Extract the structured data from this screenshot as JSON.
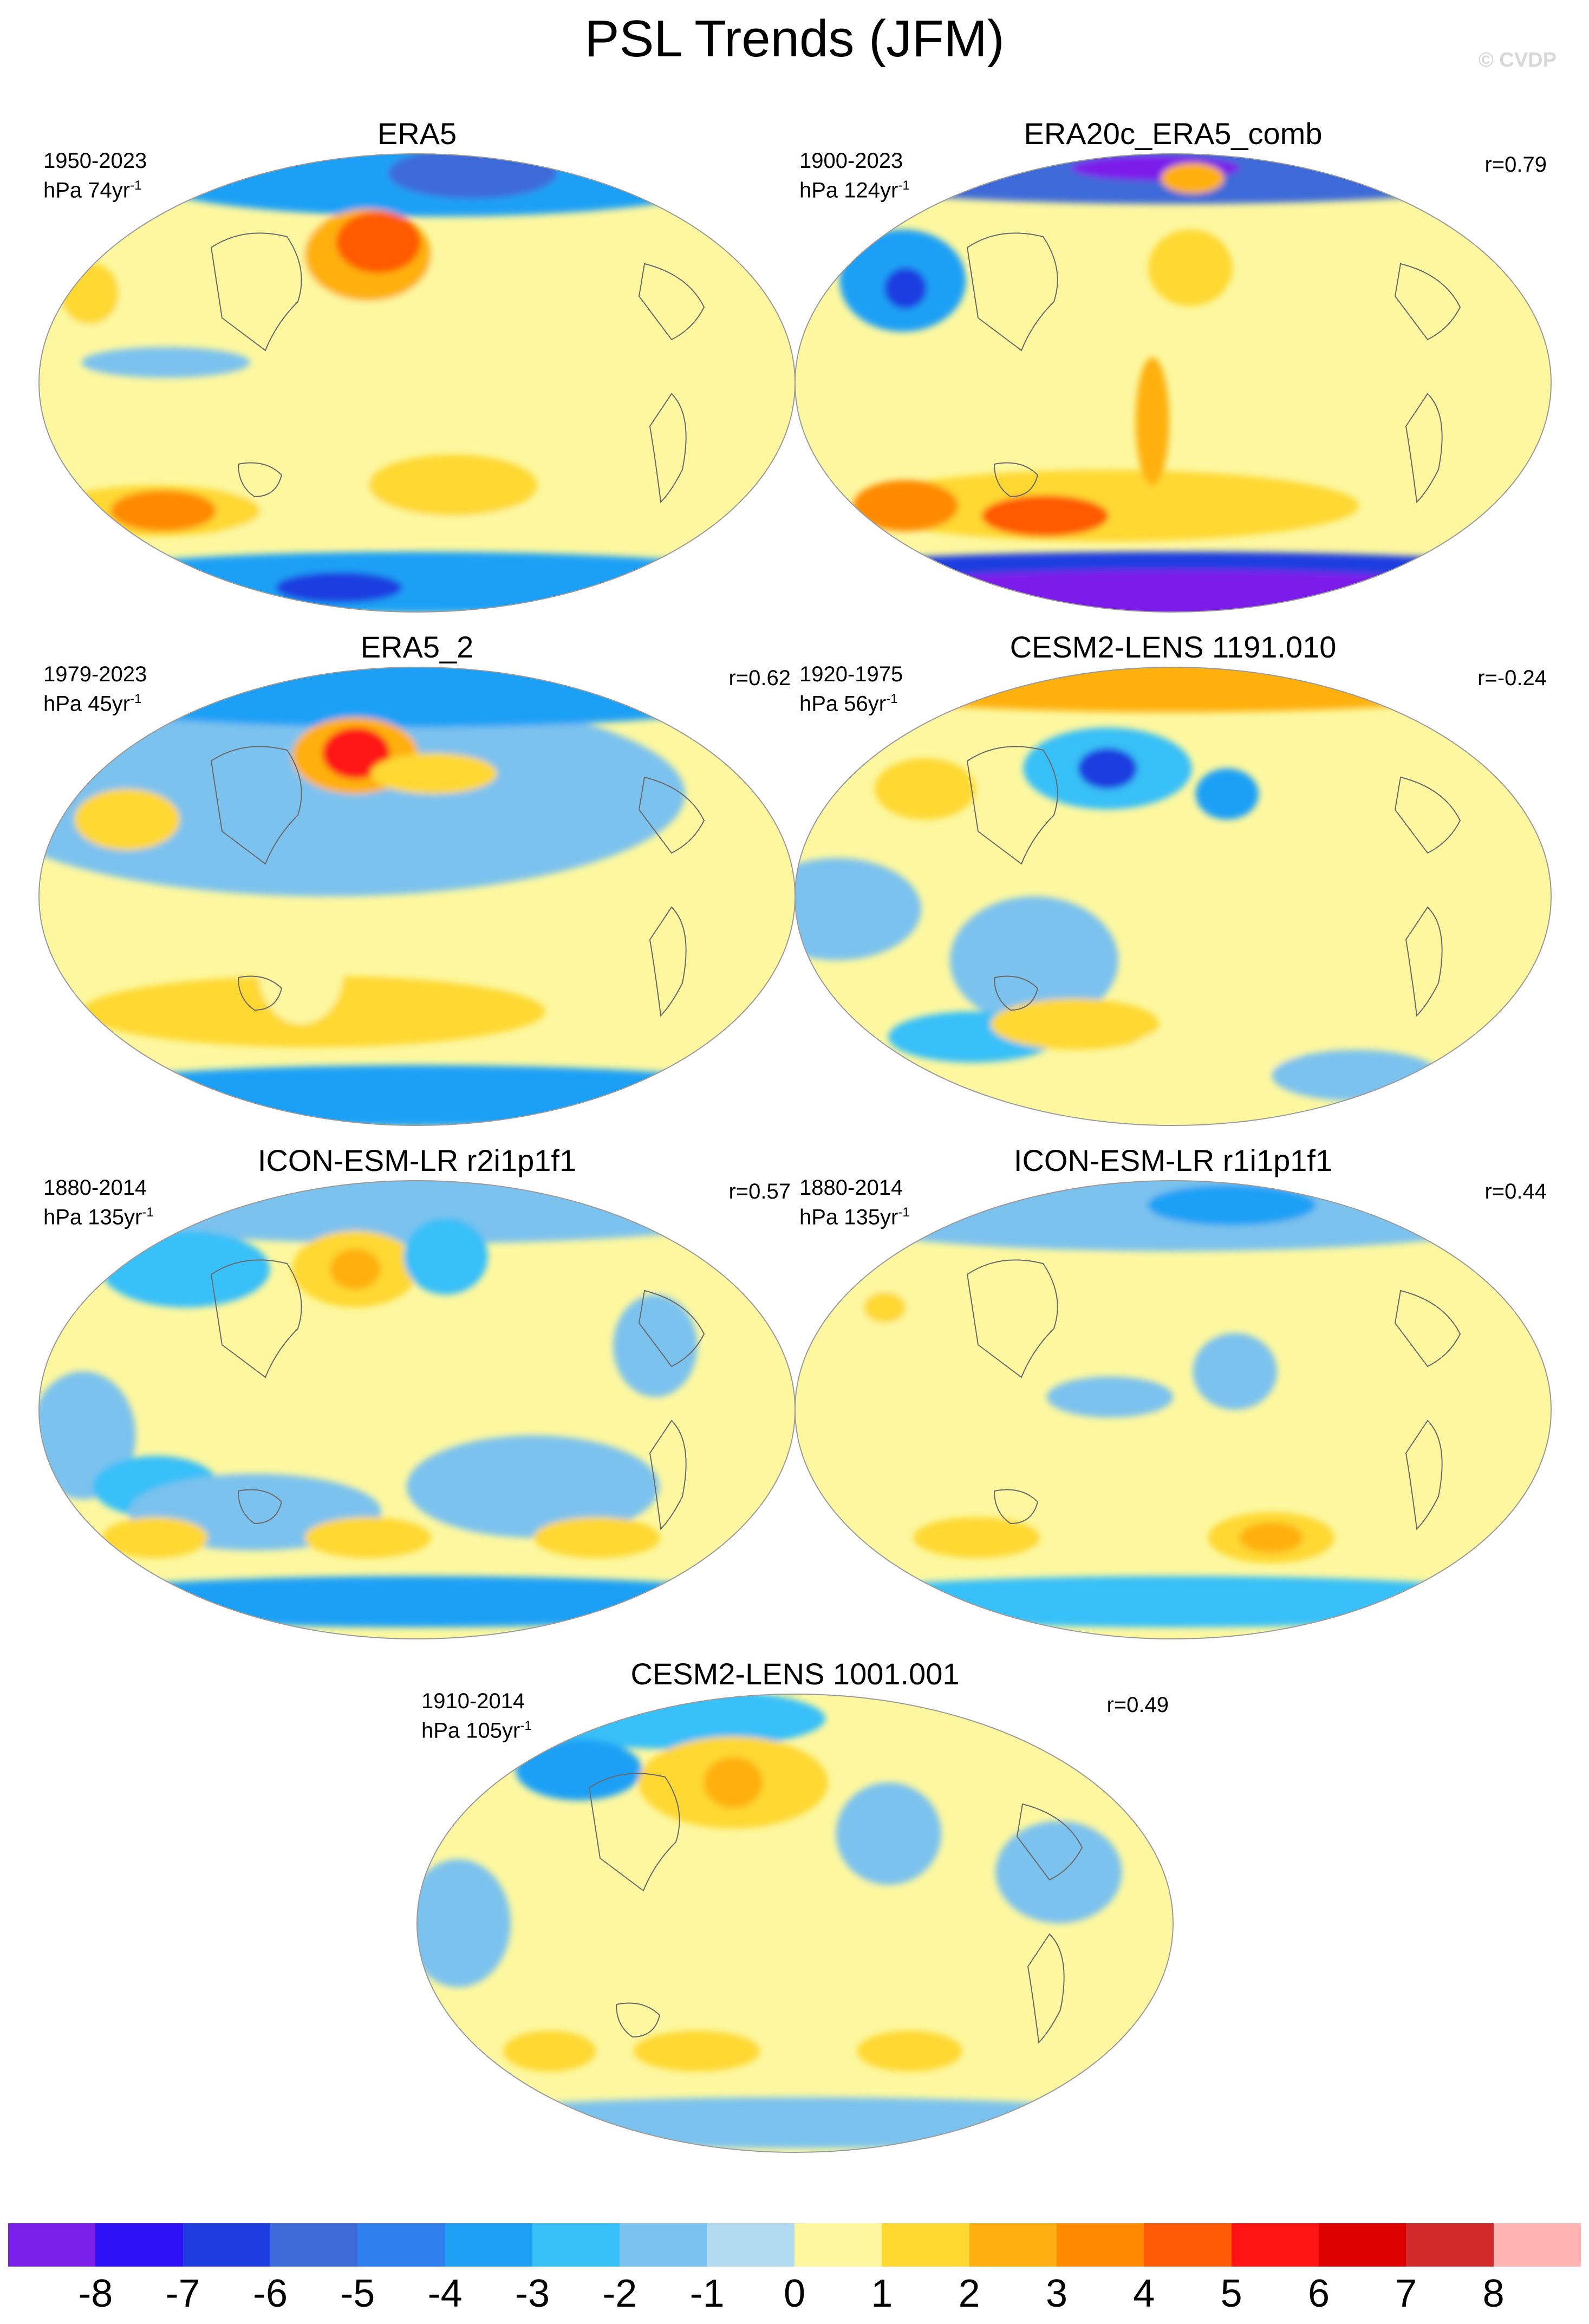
{
  "title": "PSL Trends (JFM)",
  "watermark": "© CVDP",
  "panels": [
    {
      "name": "ERA5",
      "period": "1950-2023",
      "units": "hPa 74yr",
      "units_exp": "-1",
      "corr": "",
      "blobs": [
        {
          "lon": 20,
          "lat": 80,
          "rx": 140,
          "ry": 15,
          "level": -3
        },
        {
          "lon": 60,
          "lat": 82,
          "rx": 40,
          "ry": 10,
          "level": -5
        },
        {
          "lon": -60,
          "lat": 45,
          "rx": 60,
          "ry": 18,
          "level": 1
        },
        {
          "lon": -160,
          "lat": 30,
          "rx": 28,
          "ry": 10,
          "level": 1
        },
        {
          "lon": -175,
          "lat": 35,
          "rx": 14,
          "ry": 12,
          "level": 2
        },
        {
          "lon": -30,
          "lat": 50,
          "rx": 30,
          "ry": 18,
          "level": 3
        },
        {
          "lon": -25,
          "lat": 55,
          "rx": 20,
          "ry": 12,
          "level": 5
        },
        {
          "lon": -40,
          "lat": -50,
          "rx": 80,
          "ry": 12,
          "level": 1
        },
        {
          "lon": -160,
          "lat": -50,
          "rx": 50,
          "ry": 10,
          "level": 2
        },
        {
          "lon": -155,
          "lat": -50,
          "rx": 25,
          "ry": 8,
          "level": 4
        },
        {
          "lon": 20,
          "lat": -40,
          "rx": 40,
          "ry": 12,
          "level": 2
        },
        {
          "lon": 0,
          "lat": -78,
          "rx": 180,
          "ry": 12,
          "level": -3
        },
        {
          "lon": -80,
          "lat": -80,
          "rx": 30,
          "ry": 6,
          "level": -6
        },
        {
          "lon": -120,
          "lat": 8,
          "rx": 40,
          "ry": 6,
          "level": -1
        }
      ]
    },
    {
      "name": "ERA20c_ERA5_comb",
      "period": "1900-2023",
      "units": "hPa 124yr",
      "units_exp": "-1",
      "corr": "r=0.79",
      "blobs": [
        {
          "lon": 0,
          "lat": 82,
          "rx": 180,
          "ry": 12,
          "level": -5
        },
        {
          "lon": -20,
          "lat": 84,
          "rx": 40,
          "ry": 5,
          "level": -8
        },
        {
          "lon": -150,
          "lat": 40,
          "rx": 30,
          "ry": 20,
          "level": -3
        },
        {
          "lon": -145,
          "lat": 37,
          "rx": 10,
          "ry": 8,
          "level": -6
        },
        {
          "lon": -80,
          "lat": 45,
          "rx": 30,
          "ry": 10,
          "level": 1
        },
        {
          "lon": 10,
          "lat": 45,
          "rx": 20,
          "ry": 15,
          "level": 2
        },
        {
          "lon": 20,
          "lat": 80,
          "rx": 15,
          "ry": 6,
          "level": 3
        },
        {
          "lon": -40,
          "lat": -48,
          "rx": 120,
          "ry": 14,
          "level": 2
        },
        {
          "lon": -160,
          "lat": -48,
          "rx": 25,
          "ry": 10,
          "level": 4
        },
        {
          "lon": -80,
          "lat": -52,
          "rx": 30,
          "ry": 8,
          "level": 5
        },
        {
          "lon": -10,
          "lat": -15,
          "rx": 8,
          "ry": 25,
          "level": 3
        },
        {
          "lon": 0,
          "lat": -74,
          "rx": 180,
          "ry": 8,
          "level": -6
        },
        {
          "lon": 0,
          "lat": -85,
          "rx": 180,
          "ry": 12,
          "level": -8
        }
      ]
    },
    {
      "name": "ERA5_2",
      "period": "1979-2023",
      "units": "hPa 45yr",
      "units_exp": "-1",
      "corr": "r=0.62",
      "blobs": [
        {
          "lon": -50,
          "lat": 40,
          "rx": 170,
          "ry": 40,
          "level": -1
        },
        {
          "lon": -10,
          "lat": 80,
          "rx": 180,
          "ry": 14,
          "level": -3
        },
        {
          "lon": -150,
          "lat": 30,
          "rx": 25,
          "ry": 12,
          "level": 2
        },
        {
          "lon": -40,
          "lat": 55,
          "rx": 30,
          "ry": 15,
          "level": 3
        },
        {
          "lon": -40,
          "lat": 56,
          "rx": 16,
          "ry": 10,
          "level": 6
        },
        {
          "lon": 10,
          "lat": 48,
          "rx": 30,
          "ry": 8,
          "level": 2
        },
        {
          "lon": -60,
          "lat": -45,
          "rx": 110,
          "ry": 14,
          "level": 2
        },
        {
          "lon": -60,
          "lat": -30,
          "rx": 20,
          "ry": 20,
          "level": 1
        },
        {
          "lon": 0,
          "lat": -78,
          "rx": 180,
          "ry": 12,
          "level": -3
        }
      ]
    },
    {
      "name": "CESM2-LENS 1191.010",
      "period": "1920-1975",
      "units": "hPa 56yr",
      "units_exp": "-1",
      "corr": "r=-0.24",
      "blobs": [
        {
          "lon": 0,
          "lat": 84,
          "rx": 180,
          "ry": 12,
          "level": 3
        },
        {
          "lon": -40,
          "lat": 50,
          "rx": 40,
          "ry": 16,
          "level": -2
        },
        {
          "lon": -40,
          "lat": 50,
          "rx": 14,
          "ry": 8,
          "level": -6
        },
        {
          "lon": -140,
          "lat": 42,
          "rx": 24,
          "ry": 12,
          "level": 2
        },
        {
          "lon": 30,
          "lat": 40,
          "rx": 15,
          "ry": 10,
          "level": -3
        },
        {
          "lon": -160,
          "lat": -5,
          "rx": 40,
          "ry": 20,
          "level": -1
        },
        {
          "lon": -70,
          "lat": -25,
          "rx": 40,
          "ry": 25,
          "level": -1
        },
        {
          "lon": -130,
          "lat": -55,
          "rx": 40,
          "ry": 10,
          "level": -2
        },
        {
          "lon": -60,
          "lat": -50,
          "rx": 40,
          "ry": 10,
          "level": 2
        },
        {
          "lon": 30,
          "lat": -60,
          "rx": 40,
          "ry": 10,
          "level": 1
        },
        {
          "lon": 150,
          "lat": -70,
          "rx": 40,
          "ry": 10,
          "level": -1
        }
      ]
    },
    {
      "name": "ICON-ESM-LR r2i1p1f1",
      "period": "1880-2014",
      "units": "hPa 135yr",
      "units_exp": "-1",
      "corr": "r=0.57",
      "blobs": [
        {
          "lon": 0,
          "lat": 80,
          "rx": 180,
          "ry": 15,
          "level": -1
        },
        {
          "lon": -150,
          "lat": 55,
          "rx": 40,
          "ry": 15,
          "level": -2
        },
        {
          "lon": -40,
          "lat": 55,
          "rx": 30,
          "ry": 15,
          "level": 2
        },
        {
          "lon": -40,
          "lat": 55,
          "rx": 12,
          "ry": 8,
          "level": 3
        },
        {
          "lon": 20,
          "lat": 60,
          "rx": 20,
          "ry": 15,
          "level": -2
        },
        {
          "lon": 120,
          "lat": 25,
          "rx": 20,
          "ry": 20,
          "level": -1
        },
        {
          "lon": -160,
          "lat": -10,
          "rx": 25,
          "ry": 25,
          "level": -1
        },
        {
          "lon": -135,
          "lat": -30,
          "rx": 30,
          "ry": 12,
          "level": -2
        },
        {
          "lon": -90,
          "lat": -40,
          "rx": 60,
          "ry": 15,
          "level": -1
        },
        {
          "lon": 60,
          "lat": -30,
          "rx": 60,
          "ry": 20,
          "level": -1
        },
        {
          "lon": -160,
          "lat": -50,
          "rx": 25,
          "ry": 8,
          "level": 2
        },
        {
          "lon": -30,
          "lat": -50,
          "rx": 30,
          "ry": 8,
          "level": 2
        },
        {
          "lon": 110,
          "lat": -50,
          "rx": 30,
          "ry": 8,
          "level": 2
        },
        {
          "lon": 0,
          "lat": -75,
          "rx": 180,
          "ry": 10,
          "level": -3
        }
      ]
    },
    {
      "name": "ICON-ESM-LR r1i1p1f1",
      "period": "1880-2014",
      "units": "hPa 135yr",
      "units_exp": "-1",
      "corr": "r=0.44",
      "blobs": [
        {
          "lon": 0,
          "lat": 78,
          "rx": 180,
          "ry": 16,
          "level": -1
        },
        {
          "lon": 60,
          "lat": 80,
          "rx": 40,
          "ry": 8,
          "level": -3
        },
        {
          "lon": -40,
          "lat": 40,
          "rx": 35,
          "ry": 20,
          "level": 1
        },
        {
          "lon": -155,
          "lat": 40,
          "rx": 25,
          "ry": 12,
          "level": 1
        },
        {
          "lon": -160,
          "lat": 40,
          "rx": 10,
          "ry": 6,
          "level": 2
        },
        {
          "lon": 30,
          "lat": 15,
          "rx": 20,
          "ry": 15,
          "level": -1
        },
        {
          "lon": -30,
          "lat": 5,
          "rx": 30,
          "ry": 8,
          "level": -1
        },
        {
          "lon": -120,
          "lat": -50,
          "rx": 30,
          "ry": 8,
          "level": 2
        },
        {
          "lon": -30,
          "lat": -50,
          "rx": 30,
          "ry": 8,
          "level": 1
        },
        {
          "lon": 60,
          "lat": -50,
          "rx": 30,
          "ry": 10,
          "level": 2
        },
        {
          "lon": 60,
          "lat": -50,
          "rx": 15,
          "ry": 6,
          "level": 3
        },
        {
          "lon": 0,
          "lat": -75,
          "rx": 180,
          "ry": 10,
          "level": -2
        }
      ]
    },
    {
      "name": "CESM2-LENS 1001.001",
      "period": "1910-2014",
      "units": "hPa 105yr",
      "units_exp": "-1",
      "corr": "r=0.49",
      "blobs": [
        {
          "lon": -120,
          "lat": 80,
          "rx": 70,
          "ry": 12,
          "level": -2
        },
        {
          "lon": -150,
          "lat": 60,
          "rx": 30,
          "ry": 12,
          "level": -3
        },
        {
          "lon": -40,
          "lat": 55,
          "rx": 45,
          "ry": 18,
          "level": 2
        },
        {
          "lon": -40,
          "lat": 55,
          "rx": 14,
          "ry": 10,
          "level": 3
        },
        {
          "lon": 50,
          "lat": 35,
          "rx": 25,
          "ry": 20,
          "level": -1
        },
        {
          "lon": 130,
          "lat": 20,
          "rx": 30,
          "ry": 20,
          "level": -1
        },
        {
          "lon": -160,
          "lat": 0,
          "rx": 25,
          "ry": 25,
          "level": -1
        },
        {
          "lon": -150,
          "lat": -50,
          "rx": 22,
          "ry": 8,
          "level": 2
        },
        {
          "lon": -60,
          "lat": -50,
          "rx": 30,
          "ry": 8,
          "level": 2
        },
        {
          "lon": 70,
          "lat": -50,
          "rx": 25,
          "ry": 8,
          "level": 2
        },
        {
          "lon": 0,
          "lat": -78,
          "rx": 180,
          "ry": 10,
          "level": -1
        }
      ]
    }
  ],
  "colorbar": {
    "labels": [
      "-8",
      "-7",
      "-6",
      "-5",
      "-4",
      "-3",
      "-2",
      "-1",
      "0",
      "1",
      "2",
      "3",
      "4",
      "5",
      "6",
      "7",
      "8"
    ],
    "colors": [
      "#7b1fea",
      "#2e10f5",
      "#1d3de0",
      "#3e6ad8",
      "#2f80ee",
      "#1ea0f5",
      "#38c0f8",
      "#7cc2ee",
      "#b2daf1",
      "#fdf8a0",
      "#ffd830",
      "#ffb010",
      "#ff8a00",
      "#ff5a05",
      "#ff1414",
      "#dc0000",
      "#d22a2a",
      "#ffb4b4"
    ]
  }
}
